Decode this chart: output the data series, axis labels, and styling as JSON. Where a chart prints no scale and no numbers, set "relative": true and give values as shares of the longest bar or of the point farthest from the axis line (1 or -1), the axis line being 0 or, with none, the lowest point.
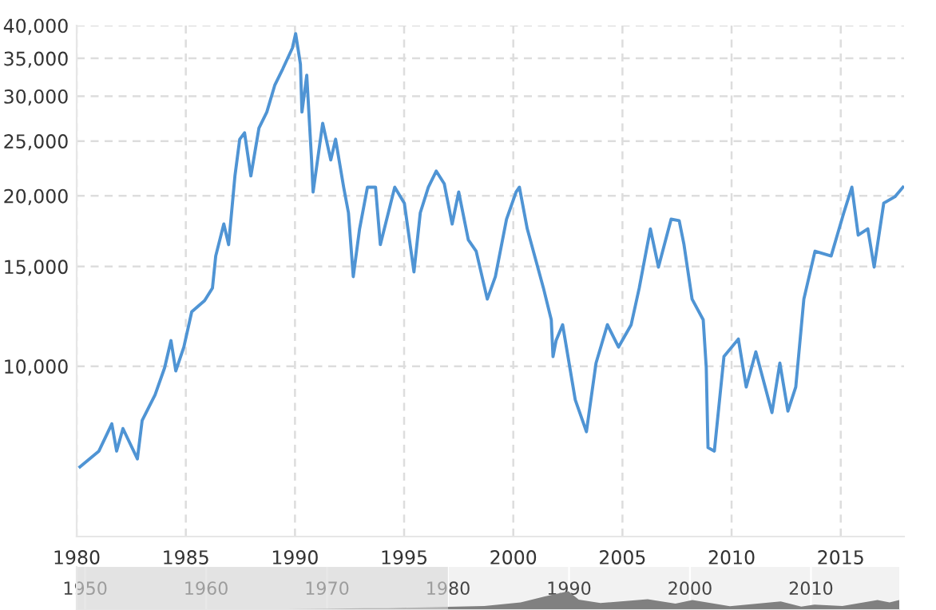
{
  "chart_data": [
    {
      "type": "line",
      "x": [
        1980.15,
        1981.02,
        1981.61,
        1981.83,
        1982.12,
        1982.78,
        1983.0,
        1983.59,
        1984.03,
        1984.32,
        1984.54,
        1984.91,
        1985.27,
        1985.86,
        1986.22,
        1986.37,
        1986.74,
        1986.96,
        1987.25,
        1987.47,
        1987.69,
        1987.98,
        1988.35,
        1988.71,
        1989.08,
        1989.44,
        1989.88,
        1990.03,
        1990.25,
        1990.32,
        1990.54,
        1990.76,
        1990.83,
        1991.27,
        1991.64,
        1991.86,
        1992.23,
        1992.45,
        1992.67,
        1992.96,
        1993.32,
        1993.69,
        1993.91,
        1994.57,
        1995.01,
        1995.45,
        1995.74,
        1996.11,
        1996.47,
        1996.84,
        1997.2,
        1997.5,
        1997.94,
        1998.3,
        1998.81,
        1999.18,
        1999.69,
        2000.13,
        2000.28,
        2000.64,
        2001.38,
        2001.74,
        2001.82,
        2001.96,
        2002.26,
        2002.84,
        2003.35,
        2003.79,
        2004.31,
        2004.82,
        2005.4,
        2005.77,
        2006.28,
        2006.65,
        2007.23,
        2007.6,
        2007.82,
        2008.19,
        2008.7,
        2008.84,
        2008.92,
        2009.21,
        2009.65,
        2010.31,
        2010.67,
        2011.11,
        2011.85,
        2012.21,
        2012.58,
        2012.94,
        2013.31,
        2013.82,
        2014.56,
        2015.14,
        2015.51,
        2015.8,
        2016.24,
        2016.53,
        2016.97,
        2017.48,
        2017.85
      ],
      "series": [
        {
          "color": "#4f94d4",
          "values": [
            6640,
            7080,
            7910,
            7080,
            7760,
            6860,
            8020,
            8900,
            9940,
            11100,
            9810,
            10810,
            12480,
            13060,
            13750,
            15660,
            17840,
            16400,
            21690,
            25190,
            25850,
            21690,
            26360,
            28130,
            31420,
            33530,
            36490,
            38700,
            34190,
            28130,
            32670,
            23150,
            20320,
            26880,
            23150,
            25190,
            20720,
            18670,
            14400,
            17490,
            20720,
            20720,
            16400,
            20720,
            19420,
            14680,
            18670,
            20720,
            22120,
            21000,
            17840,
            20320,
            16720,
            15970,
            13140,
            14400,
            18190,
            20320,
            20720,
            17490,
            13750,
            12080,
            10400,
            11100,
            11840,
            8720,
            7660,
            10130,
            11840,
            10810,
            11840,
            13750,
            17490,
            14970,
            18190,
            18080,
            16400,
            13140,
            12080,
            9940,
            7180,
            7080,
            10400,
            11170,
            9190,
            10600,
            8280,
            10130,
            8330,
            9190,
            13140,
            15970,
            15660,
            18670,
            20720,
            17050,
            17490,
            14970,
            19420,
            19930,
            20720
          ]
        }
      ],
      "log": "y",
      "xlim": [
        1980,
        2017.9
      ],
      "ylim": [
        5000,
        40000
      ],
      "xticks": [
        1980,
        1985,
        1990,
        1995,
        2000,
        2005,
        2010,
        2015
      ],
      "yticks": [
        {
          "value": 10000,
          "label": "10,000"
        },
        {
          "value": 15000,
          "label": "15,000"
        },
        {
          "value": 20000,
          "label": "20,000"
        },
        {
          "value": 25000,
          "label": "25,000"
        },
        {
          "value": 30000,
          "label": "30,000"
        },
        {
          "value": 35000,
          "label": "35,000"
        },
        {
          "value": 40000,
          "label": "40,000"
        }
      ],
      "grid": true
    },
    {
      "type": "area",
      "relative": true,
      "x": [
        1949.3,
        1955,
        1960,
        1965,
        1970,
        1973,
        1975,
        1980,
        1983,
        1986,
        1988,
        1989.95,
        1990.8,
        1992.6,
        1996.5,
        1998.8,
        2000.2,
        2003.3,
        2007.5,
        2009.2,
        2010.3,
        2012.6,
        2015.5,
        2016.5,
        2017.3
      ],
      "series": [
        {
          "color": "#808080",
          "values": [
            0.01,
            0.015,
            0.03,
            0.03,
            0.06,
            0.1,
            0.1,
            0.17,
            0.21,
            0.4,
            0.72,
            1,
            0.55,
            0.37,
            0.57,
            0.34,
            0.53,
            0.2,
            0.46,
            0.18,
            0.29,
            0.21,
            0.53,
            0.4,
            0.53
          ]
        }
      ],
      "xlim": [
        1949.3,
        2017.3
      ],
      "xticks": [
        1950,
        1960,
        1970,
        1980,
        1990,
        2000,
        2010
      ],
      "bands": [
        {
          "axis": "x",
          "from": 1949.3,
          "to": 1980,
          "color": "#d8d8d8"
        }
      ],
      "grid": "x",
      "tick_labels": "x"
    }
  ]
}
